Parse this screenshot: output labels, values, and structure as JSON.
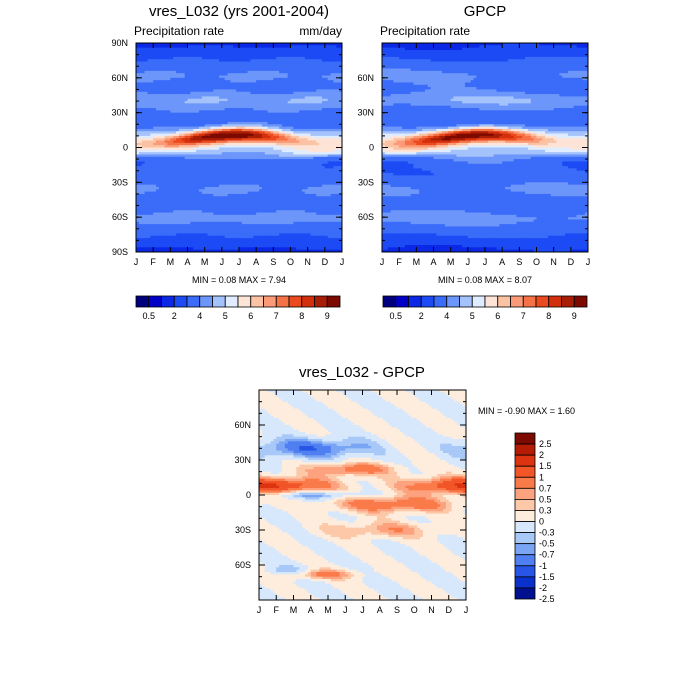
{
  "chart_data": [
    {
      "type": "heatmap",
      "title": "vres_L032 (yrs 2001-2004)",
      "left_string": "Precipitation rate",
      "right_string": "mm/day",
      "x_ticks": [
        "J",
        "F",
        "M",
        "A",
        "M",
        "J",
        "J",
        "A",
        "S",
        "O",
        "N",
        "D",
        "J"
      ],
      "y_ticks": [
        "90N",
        "60N",
        "30N",
        "0",
        "30S",
        "60S",
        "90S"
      ],
      "stats": "MIN =   0.08 MAX =   7.94",
      "min": 0.08,
      "max": 7.94,
      "colorbar_labels": [
        "0.5",
        "2",
        "4",
        "5",
        "6",
        "7",
        "8",
        "9"
      ]
    },
    {
      "type": "heatmap",
      "title": "GPCP",
      "left_string": "Precipitation rate",
      "right_string": "",
      "x_ticks": [
        "J",
        "F",
        "M",
        "A",
        "M",
        "J",
        "J",
        "A",
        "S",
        "O",
        "N",
        "D",
        "J"
      ],
      "y_ticks": [
        "",
        "60N",
        "30N",
        "0",
        "30S",
        "60S",
        ""
      ],
      "stats": "MIN =   0.08 MAX =   8.07",
      "min": 0.08,
      "max": 8.07,
      "colorbar_labels": [
        "0.5",
        "2",
        "4",
        "5",
        "6",
        "7",
        "8",
        "9"
      ]
    },
    {
      "type": "heatmap",
      "title": "vres_L032 - GPCP",
      "x_ticks": [
        "J",
        "F",
        "M",
        "A",
        "M",
        "J",
        "J",
        "A",
        "S",
        "O",
        "N",
        "D",
        "J"
      ],
      "y_ticks": [
        "60N",
        "30N",
        "0",
        "30S",
        "60S"
      ],
      "stats": "MIN =  -0.90 MAX =   1.60",
      "min": -0.9,
      "max": 1.6,
      "colorbar_labels": [
        "2.5",
        "2",
        "1.5",
        "1",
        "0.7",
        "0.5",
        "0.3",
        "0",
        "-0.3",
        "-0.5",
        "-0.7",
        "-1",
        "-1.5",
        "-2",
        "-2.5"
      ]
    }
  ],
  "colors": {
    "precip_levels": [
      "#00007f",
      "#0000c6",
      "#0a28e6",
      "#1c4bf5",
      "#3a6cf9",
      "#6c96fa",
      "#a4c2fc",
      "#e0ecff",
      "#fde4d6",
      "#fcc2a4",
      "#fa9a76",
      "#f57246",
      "#ea4a1e",
      "#d42f0c",
      "#a81d05",
      "#7c0a00"
    ],
    "diff_levels": [
      "#7c0a00",
      "#b41c05",
      "#dc3410",
      "#f25528",
      "#fa7a4a",
      "#fca27e",
      "#fdc8a8",
      "#feecdc",
      "#d8e8fc",
      "#a8c8f8",
      "#7aa4f4",
      "#4f7ff0",
      "#2756e6",
      "#0b31cc",
      "#00108e"
    ]
  }
}
